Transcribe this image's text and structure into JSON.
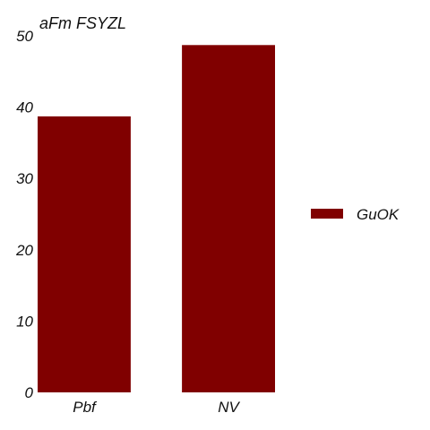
{
  "chart_data": {
    "type": "bar",
    "title": "aFm FSYZL",
    "categories": [
      "Pbf",
      "NV"
    ],
    "series": [
      {
        "name": "GuOK",
        "values": [
          38.7,
          48.7
        ]
      }
    ],
    "ylim": [
      0,
      50
    ],
    "yticks": [
      0,
      10,
      20,
      30,
      40,
      50
    ],
    "xlabel": "",
    "ylabel": "",
    "grid": false,
    "legend_position": "right",
    "colors": {
      "bar": "#800000",
      "background": "#ffffff",
      "text": "#111111"
    }
  }
}
